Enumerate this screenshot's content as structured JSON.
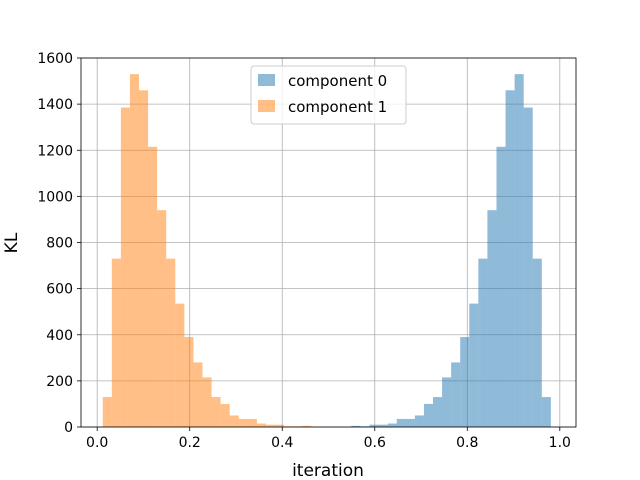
{
  "chart_data": {
    "type": "bar",
    "subtype": "overlapping-histogram",
    "xlabel": "iteration",
    "ylabel": "KL",
    "xlim": [
      -0.035,
      1.035
    ],
    "ylim": [
      0,
      1600
    ],
    "xticks": [
      "0.0",
      "0.2",
      "0.4",
      "0.6",
      "0.8",
      "1.0"
    ],
    "yticks": [
      "0",
      "200",
      "400",
      "600",
      "800",
      "1000",
      "1200",
      "1400",
      "1600"
    ],
    "grid": true,
    "legend_position": "top-center",
    "bin_width": 0.0196,
    "series": [
      {
        "name": "component 0",
        "color": "#1f77b4",
        "opacity": 0.5,
        "bin_starts": [
          0.5495,
          0.5691,
          0.5887,
          0.6083,
          0.6279,
          0.6475,
          0.6671,
          0.6867,
          0.7063,
          0.7259,
          0.7455,
          0.7651,
          0.7847,
          0.8043,
          0.8239,
          0.8435,
          0.8631,
          0.8827,
          0.9023,
          0.9219,
          0.9415,
          0.9611,
          0.9807
        ],
        "counts": [
          5,
          3,
          10,
          10,
          15,
          35,
          35,
          50,
          100,
          130,
          215,
          280,
          390,
          535,
          730,
          940,
          1215,
          1460,
          1530,
          1385,
          730,
          130,
          0
        ]
      },
      {
        "name": "component 1",
        "color": "#ff7f0e",
        "opacity": 0.5,
        "bin_starts": [
          0.012,
          0.0316,
          0.0512,
          0.0708,
          0.0904,
          0.11,
          0.1296,
          0.1492,
          0.1688,
          0.1884,
          0.208,
          0.2276,
          0.2472,
          0.2668,
          0.2864,
          0.306,
          0.3256,
          0.3452,
          0.3648,
          0.3844,
          0.404,
          0.4236,
          0.4432
        ],
        "counts": [
          130,
          730,
          1385,
          1530,
          1460,
          1215,
          940,
          730,
          535,
          390,
          280,
          215,
          130,
          100,
          50,
          35,
          35,
          15,
          10,
          10,
          3,
          3,
          5
        ]
      }
    ]
  }
}
